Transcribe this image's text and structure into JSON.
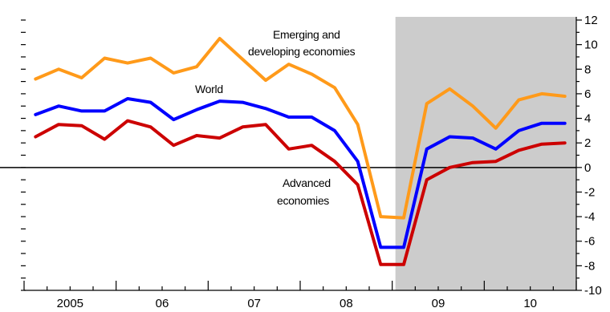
{
  "chart_data": {
    "type": "line",
    "x_categories": [
      "2005",
      "06",
      "07",
      "08",
      "09",
      "10"
    ],
    "y_axis": {
      "min": -10,
      "max": 12,
      "step": 2,
      "position": "right",
      "ticks": [
        -10,
        -8,
        -6,
        -4,
        -2,
        0,
        2,
        4,
        6,
        8,
        10,
        12
      ]
    },
    "shaded_region": {
      "from_quarter": "2009-Q1",
      "to_quarter": "2010-Q4",
      "color": "#cccccc"
    },
    "zero_line": true,
    "x_quarters": [
      "2005-Q1",
      "2005-Q2",
      "2005-Q3",
      "2005-Q4",
      "2006-Q1",
      "2006-Q2",
      "2006-Q3",
      "2006-Q4",
      "2007-Q1",
      "2007-Q2",
      "2007-Q3",
      "2007-Q4",
      "2008-Q1",
      "2008-Q2",
      "2008-Q3",
      "2008-Q4",
      "2009-Q1",
      "2009-Q2",
      "2009-Q3",
      "2009-Q4",
      "2010-Q1",
      "2010-Q2",
      "2010-Q3",
      "2010-Q4"
    ],
    "series": [
      {
        "name": "Emerging and developing economies",
        "color": "#ff9a1a",
        "values": [
          7.2,
          8.0,
          7.3,
          8.9,
          8.5,
          8.9,
          7.7,
          8.2,
          10.5,
          8.8,
          7.1,
          8.4,
          7.6,
          6.5,
          3.5,
          -4.0,
          -4.1,
          5.2,
          6.4,
          5.0,
          3.2,
          5.5,
          6.0,
          5.8
        ]
      },
      {
        "name": "World",
        "color": "#0000ff",
        "values": [
          4.3,
          5.0,
          4.6,
          4.6,
          5.6,
          5.3,
          3.9,
          4.7,
          5.4,
          5.3,
          4.8,
          4.1,
          4.1,
          3.0,
          0.5,
          -6.5,
          -6.5,
          1.5,
          2.5,
          2.4,
          1.5,
          3.0,
          3.6,
          3.6
        ]
      },
      {
        "name": "Advanced economies",
        "color": "#cc0000",
        "values": [
          2.5,
          3.5,
          3.4,
          2.3,
          3.8,
          3.3,
          1.8,
          2.6,
          2.4,
          3.3,
          3.5,
          1.5,
          1.8,
          0.5,
          -1.4,
          -7.9,
          -7.9,
          -1.0,
          0.0,
          0.4,
          0.5,
          1.4,
          1.9,
          2.0
        ]
      }
    ],
    "annotations": {
      "emerging_line1": "Emerging and",
      "emerging_line2": "developing economies",
      "world": "World",
      "advanced_line1": "Advanced",
      "advanced_line2": "economies"
    },
    "colors": {
      "axis": "#000000",
      "shade": "#cccccc",
      "zero_line": "#000000"
    }
  }
}
